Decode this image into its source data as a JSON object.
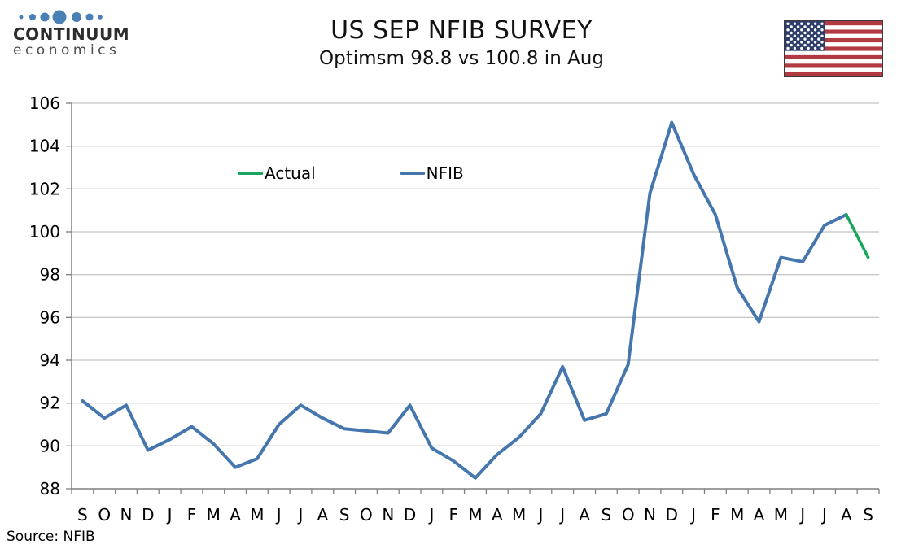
{
  "header": {
    "logo": {
      "brand": "CONTINUUM",
      "tagline": "economics"
    },
    "title": "US SEP NFIB SURVEY",
    "subtitle": "Optimsm 98.8 vs 100.8 in Aug"
  },
  "footer": {
    "source": "Source: NFIB"
  },
  "colors": {
    "gridline": "#b3b3b3",
    "axis": "#7f7f7f",
    "logo_dot": "#4a80b6",
    "flag_red": "#b23b43",
    "flag_canton": "#2e3d6b"
  },
  "chart_data": {
    "type": "line",
    "title": "US SEP NFIB SURVEY",
    "subtitle": "Optimsm 98.8 vs 100.8 in Aug",
    "categories": [
      "S",
      "O",
      "N",
      "D",
      "J",
      "F",
      "M",
      "A",
      "M",
      "J",
      "J",
      "A",
      "S",
      "O",
      "N",
      "D",
      "J",
      "F",
      "M",
      "A",
      "M",
      "J",
      "J",
      "A",
      "S",
      "O",
      "N",
      "D",
      "J",
      "F",
      "M",
      "A",
      "M",
      "J",
      "J",
      "A",
      "S"
    ],
    "series": [
      {
        "name": "Actual",
        "color": "#17a65b",
        "values": [
          null,
          null,
          null,
          null,
          null,
          null,
          null,
          null,
          null,
          null,
          null,
          null,
          null,
          null,
          null,
          null,
          null,
          null,
          null,
          null,
          null,
          null,
          null,
          null,
          null,
          null,
          null,
          null,
          null,
          null,
          null,
          null,
          null,
          null,
          null,
          100.8,
          98.8
        ]
      },
      {
        "name": "NFIB",
        "color": "#4577ae",
        "values": [
          92.1,
          91.3,
          91.9,
          89.8,
          90.3,
          90.9,
          90.1,
          89.0,
          89.4,
          91.0,
          91.9,
          91.3,
          90.8,
          90.7,
          90.6,
          91.9,
          89.9,
          89.3,
          88.5,
          89.6,
          90.4,
          91.5,
          93.7,
          91.2,
          91.5,
          93.8,
          101.8,
          105.1,
          102.7,
          100.8,
          97.4,
          95.8,
          98.8,
          98.6,
          100.3,
          100.8,
          null
        ]
      }
    ],
    "ylim": [
      88,
      106
    ],
    "ytick_step": 2,
    "grid": true,
    "legend_position": "top-inside",
    "source": "Source: NFIB"
  }
}
